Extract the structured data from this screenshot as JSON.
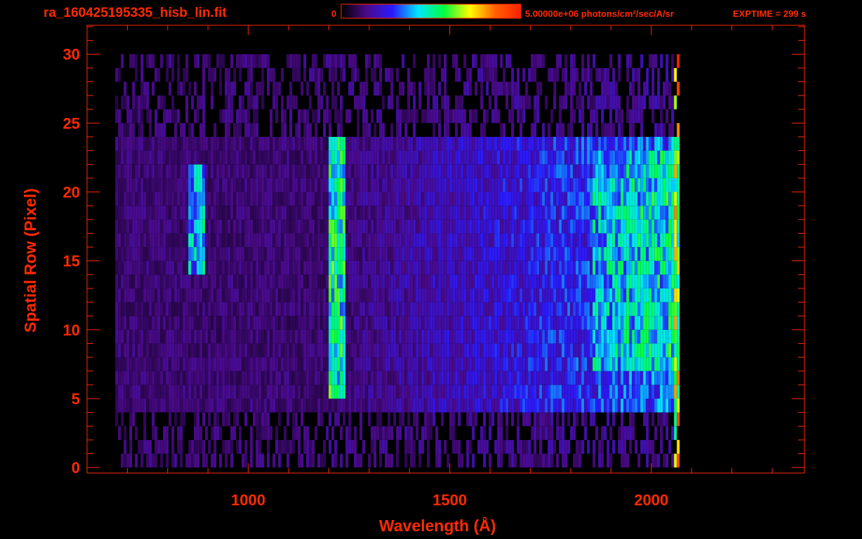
{
  "header": {
    "file_title": "ra_160425195335_hisb_lin.fit",
    "colorbar_min_label": "0",
    "colorbar_max_label": "5.00000e+06 photons/cm²/sec/A/sr",
    "exptime_label": "EXPTIME = 299 s"
  },
  "colors": {
    "axis": "#ff2a00",
    "background": "#000000",
    "colormap": [
      "#000000",
      "#4a0a8a",
      "#2a1aff",
      "#00e5ff",
      "#00ff40",
      "#ffff00",
      "#ff6000",
      "#ff2000"
    ]
  },
  "chart_data": {
    "type": "heatmap",
    "title": "ra_160425195335_hisb_lin.fit",
    "xlabel": "Wavelength (Å)",
    "ylabel": "Spatial Row (Pixel)",
    "xlim": [
      600,
      2380
    ],
    "ylim": [
      -0.4,
      32.1
    ],
    "x_ticks": [
      1000,
      1500,
      2000
    ],
    "y_ticks": [
      0,
      5,
      10,
      15,
      20,
      25,
      30
    ],
    "colorbar": {
      "min": 0,
      "max": 5000000,
      "units": "photons/cm²/sec/A/sr"
    },
    "exptime_s": 299,
    "wavelength_coverage": [
      670,
      2070
    ],
    "bright_rows": [
      4.5,
      24
    ],
    "features": [
      {
        "wavelength": 1216,
        "rows": [
          5,
          24
        ],
        "relative_intensity": 0.48
      },
      {
        "wavelength": 870,
        "rows": [
          14,
          22
        ],
        "relative_intensity": 0.4
      }
    ],
    "continuum_peak_rows": [
      7,
      23
    ],
    "continuum_peak_wavelength": [
      1850,
      2060
    ],
    "grid": false
  }
}
